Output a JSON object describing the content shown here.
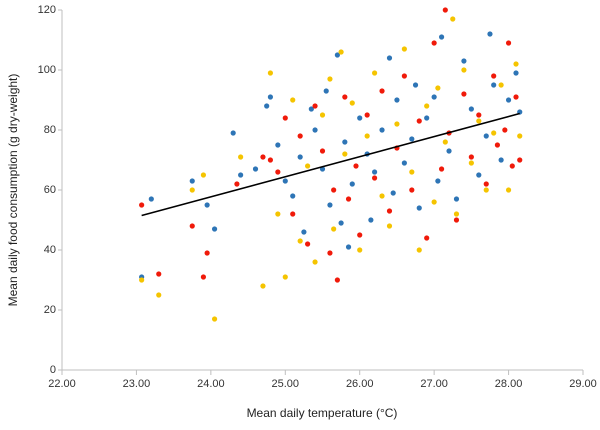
{
  "chart_data": {
    "type": "scatter",
    "x_label": "Mean daily temperature (°C)",
    "y_label": "Mean daily food consumption (g dry-weight)",
    "xlim": [
      22,
      29
    ],
    "xticks": [
      {
        "value": 22,
        "label": "22.00"
      },
      {
        "value": 23,
        "label": "23.00"
      },
      {
        "value": 24,
        "label": "24.00"
      },
      {
        "value": 25,
        "label": "25.00"
      },
      {
        "value": 26,
        "label": "26.00"
      },
      {
        "value": 27,
        "label": "27.00"
      },
      {
        "value": 28,
        "label": "28.00"
      },
      {
        "value": 29,
        "label": "29.00"
      }
    ],
    "ylim": [
      0,
      120
    ],
    "yticks": [
      0,
      20,
      40,
      60,
      80,
      100,
      120
    ],
    "grid": false,
    "series": [
      {
        "color": "#2e75b6",
        "x": [
          23.07,
          23.2,
          23.75,
          23.95,
          24.05,
          24.3,
          24.4,
          24.6,
          24.75,
          24.8,
          24.9,
          25.0,
          25.1,
          25.2,
          25.25,
          25.35,
          25.4,
          25.5,
          25.55,
          25.6,
          25.7,
          25.75,
          25.8,
          25.85,
          25.9,
          26.0,
          26.1,
          26.15,
          26.2,
          26.3,
          26.4,
          26.45,
          26.5,
          26.6,
          26.7,
          26.75,
          26.8,
          26.9,
          27.0,
          27.05,
          27.1,
          27.2,
          27.3,
          27.4,
          27.5,
          27.6,
          27.7,
          27.75,
          27.8,
          27.9,
          28.0,
          28.1,
          28.15
        ],
        "values": [
          31,
          57,
          63,
          55,
          47,
          79,
          65,
          67,
          88,
          91,
          75,
          63,
          58,
          71,
          46,
          87,
          80,
          67,
          93,
          55,
          105,
          49,
          76,
          41,
          62,
          84,
          72,
          50,
          66,
          80,
          104,
          59,
          90,
          69,
          77,
          95,
          54,
          84,
          91,
          63,
          111,
          73,
          57,
          103,
          87,
          65,
          78,
          112,
          95,
          70,
          90,
          99,
          86
        ]
      },
      {
        "color": "#f01a0a",
        "x": [
          23.07,
          23.3,
          23.75,
          23.9,
          23.95,
          24.35,
          24.7,
          24.8,
          24.9,
          25.0,
          25.1,
          25.2,
          25.3,
          25.4,
          25.5,
          25.6,
          25.65,
          25.7,
          25.8,
          25.85,
          25.95,
          26.0,
          26.1,
          26.2,
          26.3,
          26.4,
          26.5,
          26.6,
          26.7,
          26.8,
          26.9,
          27.0,
          27.1,
          27.15,
          27.2,
          27.3,
          27.4,
          27.5,
          27.6,
          27.7,
          27.8,
          27.85,
          27.95,
          28.0,
          28.05,
          28.1,
          28.15
        ],
        "values": [
          55,
          32,
          48,
          31,
          39,
          62,
          71,
          70,
          66,
          84,
          52,
          78,
          42,
          88,
          73,
          39,
          60,
          30,
          91,
          57,
          68,
          45,
          85,
          64,
          93,
          53,
          74,
          98,
          60,
          83,
          44,
          109,
          67,
          120,
          79,
          50,
          92,
          71,
          85,
          62,
          98,
          75,
          80,
          109,
          68,
          91,
          70
        ]
      },
      {
        "color": "#f5c400",
        "x": [
          23.07,
          23.3,
          23.75,
          23.9,
          24.05,
          24.4,
          24.7,
          24.8,
          24.9,
          25.0,
          25.1,
          25.2,
          25.3,
          25.4,
          25.5,
          25.6,
          25.65,
          25.75,
          25.8,
          25.9,
          26.0,
          26.1,
          26.2,
          26.3,
          26.4,
          26.5,
          26.6,
          26.7,
          26.8,
          26.9,
          27.0,
          27.05,
          27.15,
          27.25,
          27.3,
          27.4,
          27.5,
          27.6,
          27.7,
          27.8,
          27.9,
          28.0,
          28.1,
          28.15
        ],
        "values": [
          30,
          25,
          60,
          65,
          17,
          71,
          28,
          99,
          52,
          31,
          90,
          43,
          68,
          36,
          85,
          97,
          47,
          106,
          72,
          89,
          40,
          78,
          99,
          58,
          48,
          82,
          107,
          66,
          40,
          88,
          56,
          94,
          76,
          117,
          52,
          100,
          69,
          83,
          60,
          79,
          95,
          60,
          102,
          78
        ]
      }
    ],
    "trendline": {
      "color": "#000000",
      "x": [
        23.07,
        28.15
      ],
      "y": [
        51.5,
        85.5
      ]
    }
  }
}
